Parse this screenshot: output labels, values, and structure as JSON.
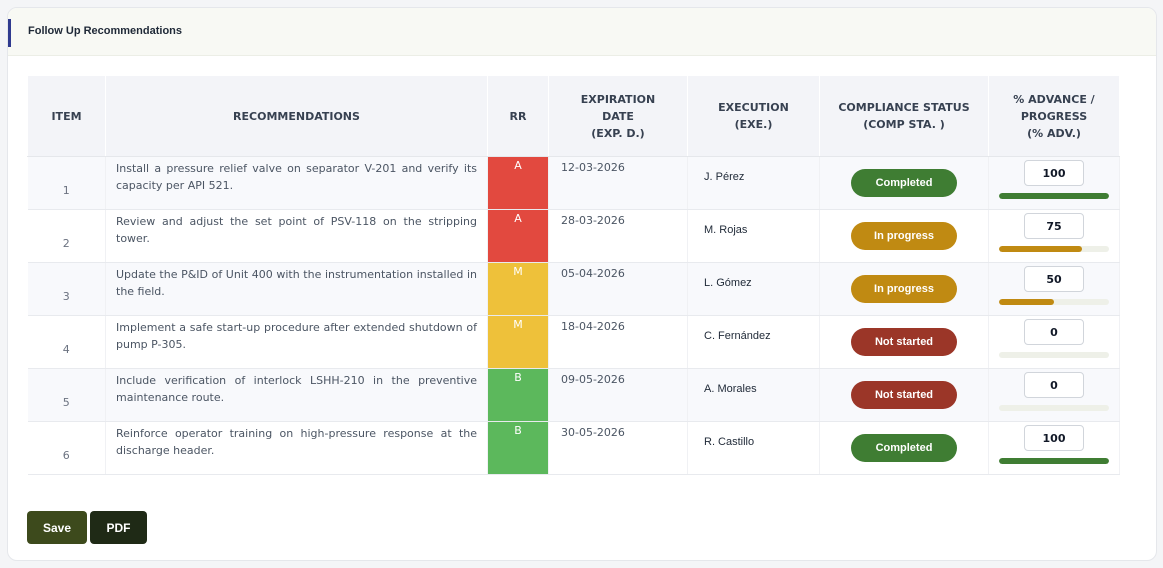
{
  "header": {
    "title": "Follow Up Recommendations"
  },
  "table": {
    "columns": {
      "item": "ITEM",
      "recommendations": "RECOMMENDATIONS",
      "rr": "RR",
      "expiration": [
        "EXPIRATION",
        "DATE",
        "(EXP. D.)"
      ],
      "execution": [
        "EXECUTION",
        "(EXE.)"
      ],
      "compliance": [
        "COMPLIANCE STATUS",
        "(COMP STA. )"
      ],
      "progress": [
        "% ADVANCE /",
        "PROGRESS",
        "(% ADV.)"
      ]
    },
    "rows": [
      {
        "item": "1",
        "recommendation": "Install a pressure relief valve on separator V-201 and verify its capacity per API 521.",
        "rr": "A",
        "rr_color": "#e2493f",
        "date": "12-03-2026",
        "execution": "J. Pérez",
        "status": "Completed",
        "status_color": "#3f7d33",
        "progress": "100",
        "progress_value": 100,
        "progress_color": "#3f7d33"
      },
      {
        "item": "2",
        "recommendation": "Review and adjust the set point of PSV-118 on the stripping tower.",
        "rr": "A",
        "rr_color": "#e2493f",
        "date": "28-03-2026",
        "execution": "M. Rojas",
        "status": "In progress",
        "status_color": "#c08a12",
        "progress": "75",
        "progress_value": 75,
        "progress_color": "#c08a12"
      },
      {
        "item": "3",
        "recommendation": "Update the P&ID of Unit 400 with the instrumentation installed in the field.",
        "rr": "M",
        "rr_color": "#eec13a",
        "date": "05-04-2026",
        "execution": "L. Gómez",
        "status": "In progress",
        "status_color": "#c08a12",
        "progress": "50",
        "progress_value": 50,
        "progress_color": "#c08a12"
      },
      {
        "item": "4",
        "recommendation": "Implement a safe start-up procedure after extended shutdown of pump P-305.",
        "rr": "M",
        "rr_color": "#eec13a",
        "date": "18-04-2026",
        "execution": "C. Fernández",
        "status": "Not started",
        "status_color": "#9b3628",
        "progress": "0",
        "progress_value": 0,
        "progress_color": "#9b3628"
      },
      {
        "item": "5",
        "recommendation": "Include verification of interlock LSHH-210 in the preventive maintenance route.",
        "rr": "B",
        "rr_color": "#5cb85c",
        "date": "09-05-2026",
        "execution": "A. Morales",
        "status": "Not started",
        "status_color": "#9b3628",
        "progress": "0",
        "progress_value": 0,
        "progress_color": "#9b3628"
      },
      {
        "item": "6",
        "recommendation": "Reinforce operator training on high-pressure response at the discharge header.",
        "rr": "B",
        "rr_color": "#5cb85c",
        "date": "30-05-2026",
        "execution": "R. Castillo",
        "status": "Completed",
        "status_color": "#3f7d33",
        "progress": "100",
        "progress_value": 100,
        "progress_color": "#3f7d33"
      }
    ]
  },
  "actions": {
    "save": "Save",
    "pdf": "PDF"
  }
}
